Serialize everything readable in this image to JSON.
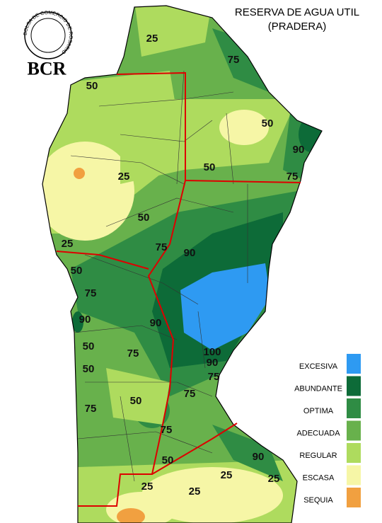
{
  "header": {
    "title": "RESERVA DE AGUA UTIL",
    "subtitle": "(PRADERA)",
    "logo_ring": "BOLSA DE COMERCIO DE ROSARIO",
    "logo_text": "BCR"
  },
  "legend": [
    {
      "label": "EXCESIVA",
      "color": "#2e9af2"
    },
    {
      "label": "ABUNDANTE",
      "color": "#0d6b38"
    },
    {
      "label": "OPTIMA",
      "color": "#2f8c44"
    },
    {
      "label": "ADECUADA",
      "color": "#68b14c"
    },
    {
      "label": "REGULAR",
      "color": "#aedb5e"
    },
    {
      "label": "ESCASA",
      "color": "#f6f6a6"
    },
    {
      "label": "SEQUIA",
      "color": "#f1a040"
    }
  ],
  "contour_labels": [
    25,
    75,
    50,
    50,
    90,
    50,
    75,
    25,
    50,
    25,
    75,
    90,
    50,
    75,
    90,
    90,
    50,
    100,
    90,
    75,
    75,
    50,
    75,
    50,
    75,
    75,
    50,
    90,
    25,
    25,
    25,
    25
  ]
}
